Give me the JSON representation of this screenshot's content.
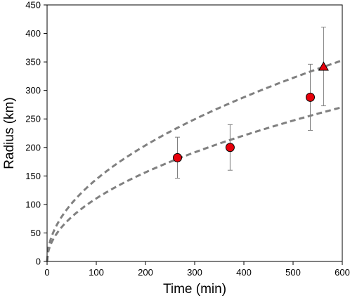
{
  "chart_data": {
    "type": "scatter",
    "title": "",
    "xlabel": "Time (min)",
    "ylabel": "Radius (km)",
    "xlim": [
      0,
      600
    ],
    "ylim": [
      0,
      450
    ],
    "xticks": [
      0,
      100,
      200,
      300,
      400,
      500,
      600
    ],
    "yticks": [
      0,
      50,
      100,
      150,
      200,
      250,
      300,
      350,
      400,
      450
    ],
    "grid": false,
    "legend": "none",
    "series": [
      {
        "marker": "circle",
        "color": "#e8000b",
        "points": [
          {
            "x": 265,
            "y": 182,
            "err_low": 146,
            "err_high": 218
          },
          {
            "x": 372,
            "y": 200,
            "err_low": 160,
            "err_high": 240
          },
          {
            "x": 535,
            "y": 288,
            "err_low": 230,
            "err_high": 346
          }
        ]
      },
      {
        "marker": "triangle",
        "color": "#e8000b",
        "points": [
          {
            "x": 562,
            "y": 341,
            "err_low": 273,
            "err_high": 411
          }
        ]
      }
    ],
    "curves": [
      {
        "style": "dashed",
        "color": "#808080",
        "form": "a*sqrt(t)",
        "a": 14.4
      },
      {
        "style": "dashed",
        "color": "#808080",
        "form": "a*sqrt(t)",
        "a": 11.05
      }
    ],
    "error_bar_color": "#7f7f7f"
  }
}
